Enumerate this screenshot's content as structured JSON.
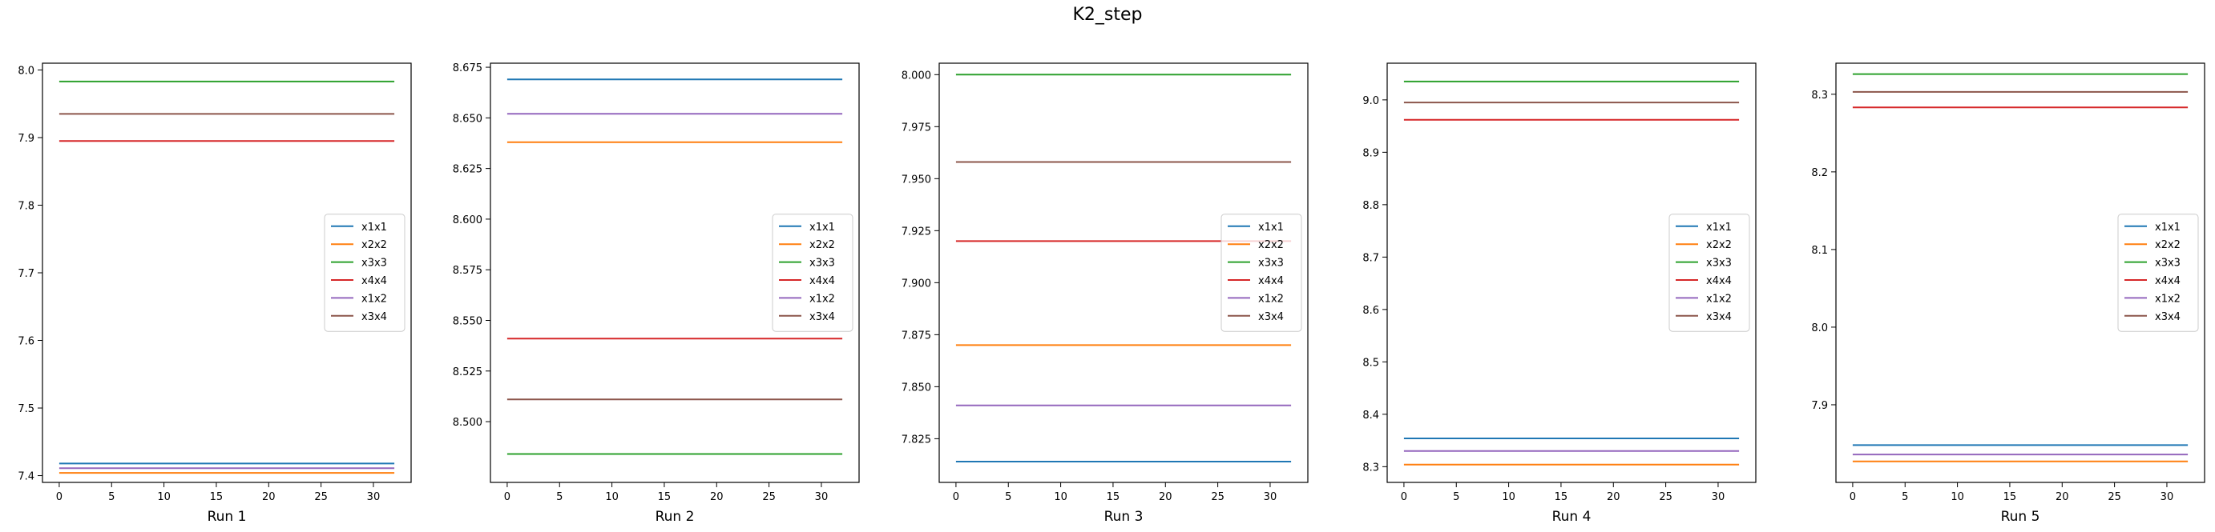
{
  "title": "K2_step",
  "colors": {
    "x1x1": "#1f77b4",
    "x2x2": "#ff7f0e",
    "x3x3": "#2ca02c",
    "x4x4": "#d62728",
    "x1x2": "#9467bd",
    "x3x4": "#8c564b"
  },
  "chart_data": [
    {
      "type": "line",
      "xlabel": "Run 1",
      "x_range": [
        0,
        32
      ],
      "xticks": [
        0,
        5,
        10,
        15,
        20,
        25,
        30
      ],
      "ylim": [
        7.39,
        8.01
      ],
      "yticks": [
        "7.4",
        "7.5",
        "7.6",
        "7.7",
        "7.8",
        "7.9",
        "8.0"
      ],
      "legend_position": "center-right",
      "series": [
        {
          "name": "x1x1",
          "value": 7.418
        },
        {
          "name": "x2x2",
          "value": 7.404
        },
        {
          "name": "x3x3",
          "value": 7.983
        },
        {
          "name": "x4x4",
          "value": 7.895
        },
        {
          "name": "x1x2",
          "value": 7.411
        },
        {
          "name": "x3x4",
          "value": 7.935
        }
      ]
    },
    {
      "type": "line",
      "xlabel": "Run 2",
      "x_range": [
        0,
        32
      ],
      "xticks": [
        0,
        5,
        10,
        15,
        20,
        25,
        30
      ],
      "ylim": [
        8.47,
        8.677
      ],
      "yticks": [
        "8.500",
        "8.525",
        "8.550",
        "8.575",
        "8.600",
        "8.625",
        "8.650",
        "8.675"
      ],
      "legend_position": "center-right",
      "series": [
        {
          "name": "x1x1",
          "value": 8.669
        },
        {
          "name": "x2x2",
          "value": 8.638
        },
        {
          "name": "x3x3",
          "value": 8.484
        },
        {
          "name": "x4x4",
          "value": 8.541
        },
        {
          "name": "x1x2",
          "value": 8.652
        },
        {
          "name": "x3x4",
          "value": 8.511
        }
      ]
    },
    {
      "type": "line",
      "xlabel": "Run 3",
      "x_range": [
        0,
        32
      ],
      "xticks": [
        0,
        5,
        10,
        15,
        20,
        25,
        30
      ],
      "ylim": [
        7.804,
        8.0055
      ],
      "yticks": [
        "7.825",
        "7.850",
        "7.875",
        "7.900",
        "7.925",
        "7.950",
        "7.975",
        "8.000"
      ],
      "legend_position": "center-right",
      "series": [
        {
          "name": "x1x1",
          "value": 7.814
        },
        {
          "name": "x2x2",
          "value": 7.87
        },
        {
          "name": "x3x3",
          "value": 8.0
        },
        {
          "name": "x4x4",
          "value": 7.92
        },
        {
          "name": "x1x2",
          "value": 7.841
        },
        {
          "name": "x3x4",
          "value": 7.958
        }
      ]
    },
    {
      "type": "line",
      "xlabel": "Run 4",
      "x_range": [
        0,
        32
      ],
      "xticks": [
        0,
        5,
        10,
        15,
        20,
        25,
        30
      ],
      "ylim": [
        8.27,
        9.07
      ],
      "yticks": [
        "8.3",
        "8.4",
        "8.5",
        "8.6",
        "8.7",
        "8.8",
        "8.9",
        "9.0"
      ],
      "legend_position": "center-right",
      "series": [
        {
          "name": "x1x1",
          "value": 8.354
        },
        {
          "name": "x2x2",
          "value": 8.304
        },
        {
          "name": "x3x3",
          "value": 9.035
        },
        {
          "name": "x4x4",
          "value": 8.962
        },
        {
          "name": "x1x2",
          "value": 8.33
        },
        {
          "name": "x3x4",
          "value": 8.995
        }
      ]
    },
    {
      "type": "line",
      "xlabel": "Run 5",
      "x_range": [
        0,
        32
      ],
      "xticks": [
        0,
        5,
        10,
        15,
        20,
        25,
        30
      ],
      "ylim": [
        7.8,
        8.34
      ],
      "yticks": [
        "7.9",
        "8.0",
        "8.1",
        "8.2",
        "8.3"
      ],
      "legend_position": "center-right",
      "series": [
        {
          "name": "x1x1",
          "value": 7.848
        },
        {
          "name": "x2x2",
          "value": 7.827
        },
        {
          "name": "x3x3",
          "value": 8.326
        },
        {
          "name": "x4x4",
          "value": 8.283
        },
        {
          "name": "x1x2",
          "value": 7.836
        },
        {
          "name": "x3x4",
          "value": 8.303
        }
      ]
    }
  ]
}
